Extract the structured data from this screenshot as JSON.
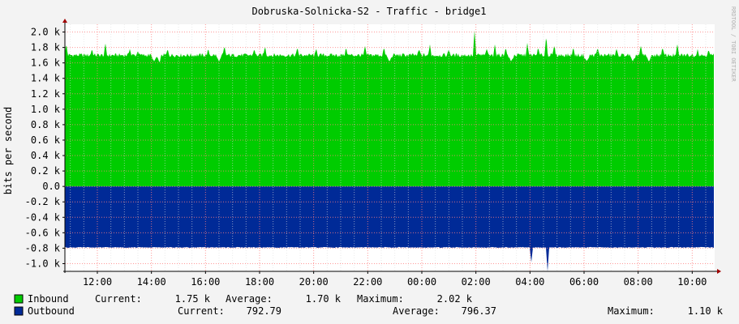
{
  "chart_data": {
    "type": "area",
    "title": "Dobruska-Solnicka-S2 - Traffic - bridge1",
    "ylabel": "bits per second",
    "watermark": "RRDTOOL / TOBI OETIKER",
    "ylim": [
      -1.1,
      2.1
    ],
    "ytick_values": [
      2.0,
      1.8,
      1.6,
      1.4,
      1.2,
      1.0,
      0.8,
      0.6,
      0.4,
      0.2,
      0.0,
      -0.2,
      -0.4,
      -0.6,
      -0.8,
      -1.0
    ],
    "ytick_labels": [
      "2.0 k",
      "1.8 k",
      "1.6 k",
      "1.4 k",
      "1.2 k",
      "1.0 k",
      "0.8 k",
      "0.6 k",
      "0.4 k",
      "0.2 k",
      "0.0",
      "-0.2 k",
      "-0.4 k",
      "-0.6 k",
      "-0.8 k",
      "-1.0 k"
    ],
    "x_start_hour": 10.8,
    "x_end_hour": 34.8,
    "xticks": [
      {
        "hour": 12,
        "label": "12:00"
      },
      {
        "hour": 14,
        "label": "14:00"
      },
      {
        "hour": 16,
        "label": "16:00"
      },
      {
        "hour": 18,
        "label": "18:00"
      },
      {
        "hour": 20,
        "label": "20:00"
      },
      {
        "hour": 22,
        "label": "22:00"
      },
      {
        "hour": 24,
        "label": "00:00"
      },
      {
        "hour": 26,
        "label": "02:00"
      },
      {
        "hour": 28,
        "label": "04:00"
      },
      {
        "hour": 30,
        "label": "06:00"
      },
      {
        "hour": 32,
        "label": "08:00"
      },
      {
        "hour": 34,
        "label": "10:00"
      }
    ],
    "grid": true,
    "series": [
      {
        "name": "Inbound",
        "color": "#00cc00",
        "baseline": 1.7,
        "spikes": [
          [
            10.85,
            1.85
          ],
          [
            11.8,
            1.78
          ],
          [
            12.3,
            1.85
          ],
          [
            13.2,
            1.78
          ],
          [
            13.5,
            1.75
          ],
          [
            14.35,
            1.82
          ],
          [
            14.6,
            1.78
          ],
          [
            16.1,
            1.78
          ],
          [
            16.7,
            1.82
          ],
          [
            17.8,
            1.78
          ],
          [
            18.2,
            1.82
          ],
          [
            19.4,
            1.8
          ],
          [
            20.1,
            1.78
          ],
          [
            21.2,
            1.8
          ],
          [
            21.9,
            1.82
          ],
          [
            22.6,
            1.8
          ],
          [
            23.9,
            1.78
          ],
          [
            24.3,
            1.84
          ],
          [
            25.0,
            1.78
          ],
          [
            25.95,
            2.02
          ],
          [
            26.4,
            1.78
          ],
          [
            26.7,
            1.84
          ],
          [
            27.1,
            1.8
          ],
          [
            27.9,
            1.86
          ],
          [
            28.3,
            1.8
          ],
          [
            28.6,
            1.96
          ],
          [
            28.9,
            1.84
          ],
          [
            29.6,
            1.8
          ],
          [
            30.5,
            1.8
          ],
          [
            31.2,
            1.78
          ],
          [
            32.1,
            1.82
          ],
          [
            32.9,
            1.8
          ],
          [
            33.45,
            1.84
          ],
          [
            34.2,
            1.78
          ],
          [
            34.6,
            1.77
          ]
        ],
        "dips": [
          [
            14.1,
            1.62
          ],
          [
            14.3,
            1.6
          ],
          [
            16.5,
            1.62
          ],
          [
            22.8,
            1.62
          ],
          [
            27.3,
            1.62
          ],
          [
            30.1,
            1.62
          ],
          [
            31.8,
            1.62
          ],
          [
            32.4,
            1.62
          ]
        ]
      },
      {
        "name": "Outbound",
        "color": "#002a97",
        "baseline": -0.79,
        "spikes": [
          [
            28.05,
            -0.98
          ],
          [
            28.65,
            -1.1
          ]
        ]
      }
    ],
    "legend": [
      {
        "name": "Inbound",
        "color": "#00cc00",
        "current": "1.75 k",
        "average": "1.70 k",
        "maximum": "2.02 k"
      },
      {
        "name": "Outbound",
        "color": "#002a97",
        "current": "792.79",
        "average": "796.37",
        "maximum": "1.10 k"
      }
    ],
    "legend_labels": {
      "current": "Current:",
      "average": "Average:",
      "maximum": "Maximum:"
    }
  }
}
